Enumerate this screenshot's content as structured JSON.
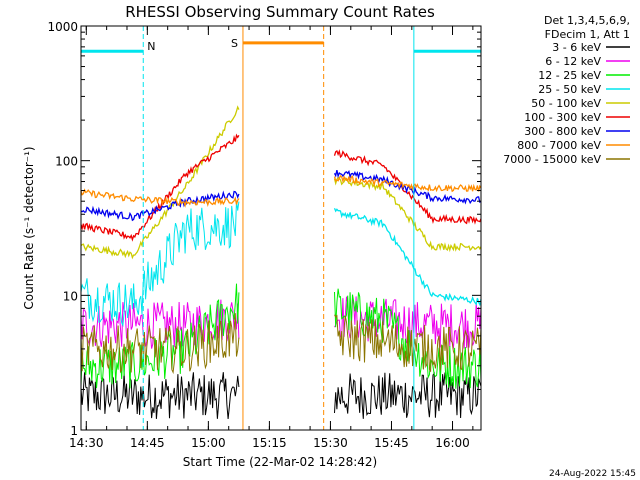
{
  "chart_data": {
    "type": "line",
    "title": "RHESSI Observing Summary Count Rates",
    "ylabel": "Count Rate (s⁻¹ detector⁻¹)",
    "xlabel": "Start Time (22-Mar-02 14:28:42)",
    "footer_date": "24-Aug-2022 15:45",
    "y_scale": "log",
    "ylim": [
      1,
      1000
    ],
    "y_ticks": [
      {
        "value": 1,
        "label": "1"
      },
      {
        "value": 10,
        "label": "10"
      },
      {
        "value": 100,
        "label": "100"
      },
      {
        "value": 1000,
        "label": "1000"
      }
    ],
    "xlim": [
      "14:28:42",
      "16:07:00"
    ],
    "x_ticks": [
      "14:30",
      "14:45",
      "15:00",
      "15:15",
      "15:30",
      "15:45",
      "16:00"
    ],
    "legend_header": [
      "Det 1,3,4,5,6,9,",
      "FDecim 1, Att 1"
    ],
    "night_intervals": [
      {
        "start": "14:28:42",
        "end": "14:44:00",
        "label": "N",
        "color": "#00e5ee",
        "level": 650
      },
      {
        "start": "15:50:30",
        "end": "16:07:00",
        "label": "",
        "color": "#00e5ee",
        "level": 650
      }
    ],
    "saa_interval": {
      "start": "15:08:30",
      "end": "15:28:20",
      "label": "S",
      "color": "#ff8c00",
      "level": 750
    },
    "segments": [
      {
        "start": "14:28:42",
        "end": "15:07:30"
      },
      {
        "start": "15:31:00",
        "end": "16:07:00"
      }
    ],
    "series": [
      {
        "name": "3 - 6 keV",
        "color": "#000000",
        "values": [
          [
            1.8,
            1.8,
            1.8,
            1.8
          ],
          [
            1.8,
            1.8,
            1.8,
            1.8
          ]
        ]
      },
      {
        "name": "6 - 12 keV",
        "color": "#ee00ee",
        "values": [
          [
            6.0,
            6.0,
            6.0,
            7.0
          ],
          [
            7.0,
            6.5,
            6.0,
            6.0
          ]
        ]
      },
      {
        "name": "12 - 25 keV",
        "color": "#00ee00",
        "values": [
          [
            3.0,
            3.0,
            4.0,
            9.0
          ],
          [
            8.0,
            6.5,
            3.0,
            3.0
          ]
        ]
      },
      {
        "name": "25 - 50 keV",
        "color": "#00e5ee",
        "values": [
          [
            10.0,
            8.5,
            31.0,
            34.0
          ],
          [
            42.0,
            34.0,
            10.0,
            9.0
          ]
        ]
      },
      {
        "name": "50 - 100 keV",
        "color": "#cccc00",
        "values": [
          [
            23.0,
            20.0,
            65.0,
            250.0
          ],
          [
            72.0,
            64.0,
            23.0,
            23.0
          ]
        ]
      },
      {
        "name": "100 - 300 keV",
        "color": "#ee0000",
        "values": [
          [
            33.0,
            27.0,
            80.0,
            150.0
          ],
          [
            115.0,
            92.0,
            37.0,
            36.0
          ]
        ]
      },
      {
        "name": "300 - 800 keV",
        "color": "#0000ee",
        "values": [
          [
            44.0,
            38.0,
            50.0,
            57.0
          ],
          [
            82.0,
            72.0,
            53.0,
            51.0
          ]
        ]
      },
      {
        "name": "800 - 7000 keV",
        "color": "#ff8c00",
        "values": [
          [
            58.0,
            52.0,
            49.0,
            50.0
          ],
          [
            75.0,
            68.0,
            63.0,
            62.0
          ]
        ]
      },
      {
        "name": "7000 - 15000 keV",
        "color": "#8b7500",
        "values": [
          [
            4.0,
            4.0,
            4.0,
            5.0
          ],
          [
            5.0,
            4.5,
            4.0,
            4.0
          ]
        ]
      }
    ],
    "grid": false,
    "legend_position": "right"
  }
}
